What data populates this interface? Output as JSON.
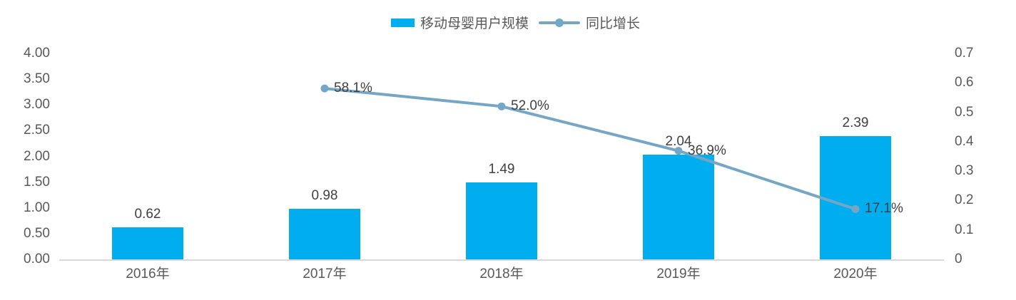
{
  "colors": {
    "bar": "#00AEEF",
    "line": "#76A6C6",
    "axis_line": "#D9D9D9",
    "axis_text": "#595959",
    "data_label_text": "#404040"
  },
  "legend": {
    "bar_label": "移动母婴用户规模",
    "line_label": "同比增长"
  },
  "chart_data": {
    "type": "bar+line combo",
    "title": "",
    "categories": [
      "2016年",
      "2017年",
      "2018年",
      "2019年",
      "2020年"
    ],
    "series": [
      {
        "name": "移动母婴用户规模",
        "type": "bar",
        "axis": "left",
        "values": [
          0.62,
          0.98,
          1.49,
          2.04,
          2.39
        ],
        "labels": [
          "0.62",
          "0.98",
          "1.49",
          "2.04",
          "2.39"
        ]
      },
      {
        "name": "同比增长",
        "type": "line",
        "axis": "right",
        "values": [
          null,
          0.581,
          0.52,
          0.369,
          0.171
        ],
        "labels": [
          null,
          "58.1%",
          "52.0%",
          "36.9%",
          "17.1%"
        ]
      }
    ],
    "left_axis": {
      "min": 0,
      "max": 4,
      "ticks": [
        "0.00",
        "0.50",
        "1.00",
        "1.50",
        "2.00",
        "2.50",
        "3.00",
        "3.50",
        "4.00"
      ]
    },
    "right_axis": {
      "min": 0,
      "max": 0.7,
      "ticks": [
        "0",
        "0.1",
        "0.2",
        "0.3",
        "0.4",
        "0.5",
        "0.6",
        "0.7"
      ]
    },
    "grid": false,
    "legend_position": "top-center"
  }
}
